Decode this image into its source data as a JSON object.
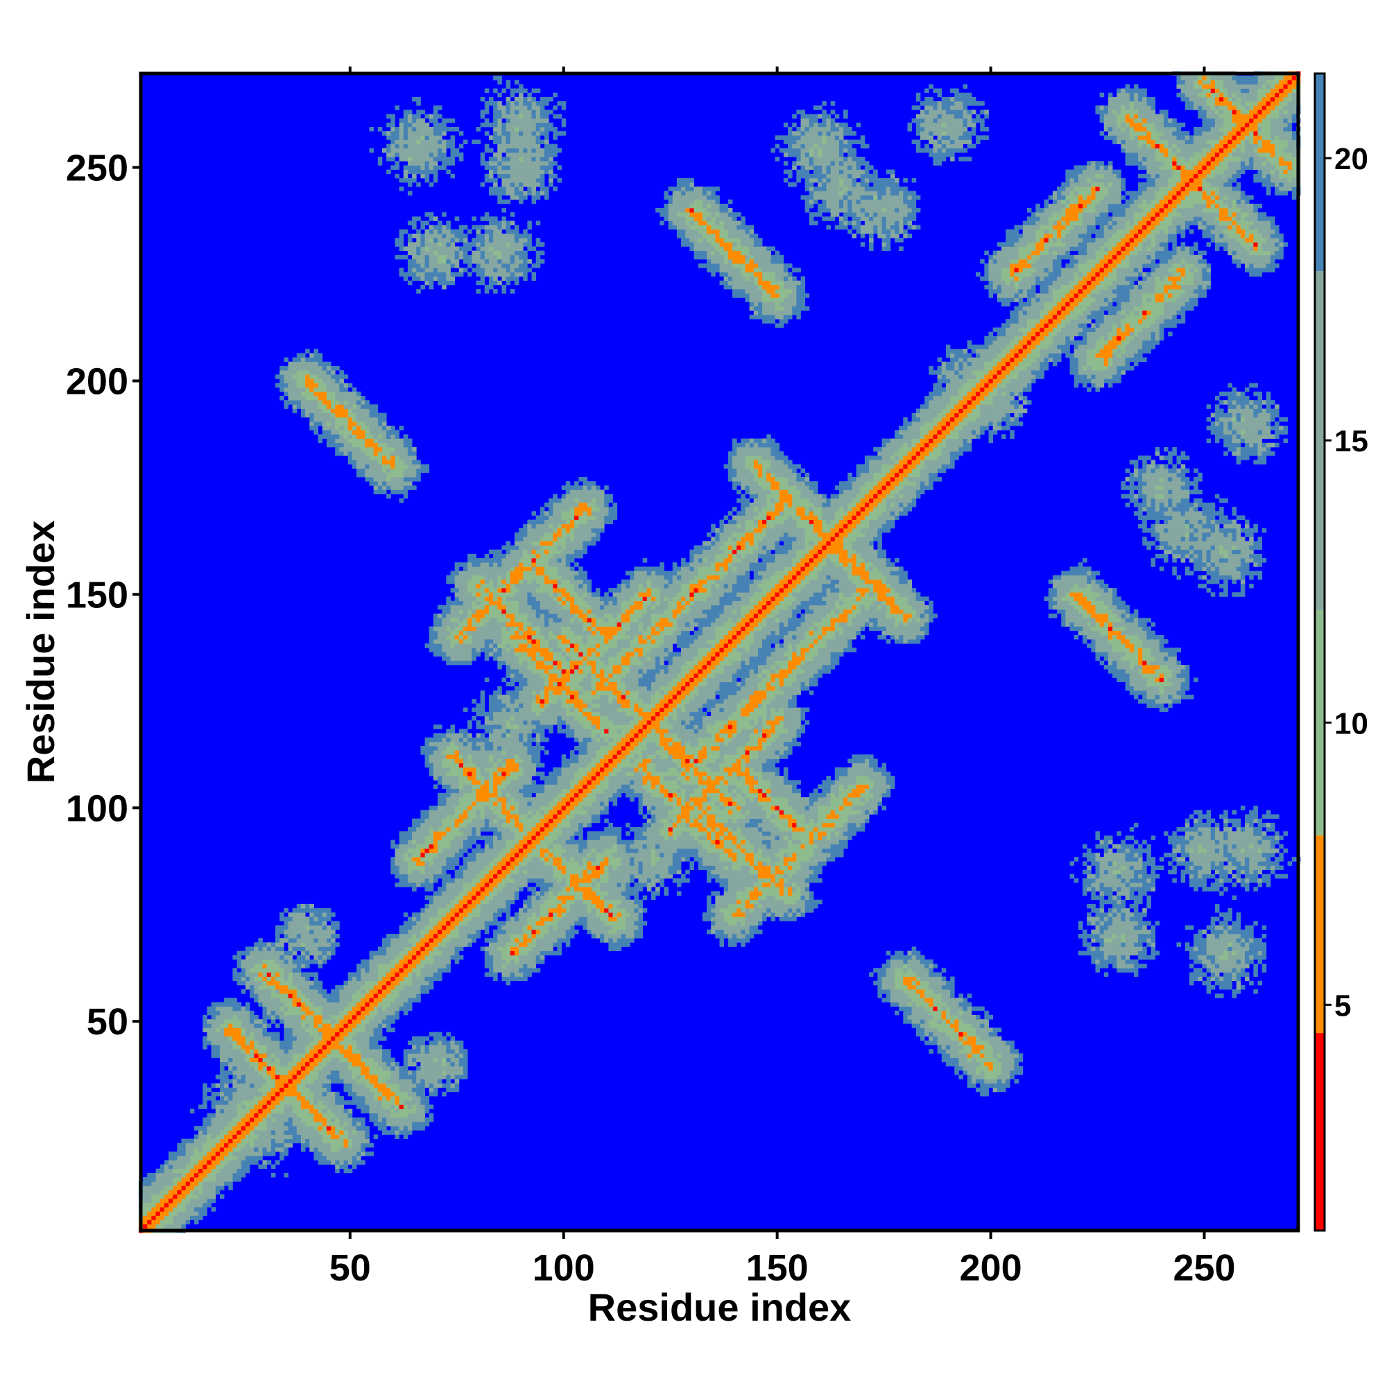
{
  "chart_data": {
    "type": "heatmap",
    "title": "",
    "xlabel": "Residue index",
    "ylabel": "Residue index",
    "xlim": [
      1,
      272
    ],
    "ylim": [
      1,
      272
    ],
    "x_ticks": [
      50,
      100,
      150,
      200,
      250
    ],
    "y_ticks": [
      50,
      100,
      150,
      200,
      250
    ],
    "x_tick_labels": [
      "50",
      "100",
      "150",
      "200",
      "250"
    ],
    "y_tick_labels": [
      "50",
      "100",
      "150",
      "200",
      "250"
    ],
    "colorbar": {
      "range": [
        1,
        21.5
      ],
      "ticks": [
        5,
        10,
        15,
        20
      ],
      "tick_labels": [
        "5",
        "10",
        "15",
        "20"
      ],
      "colors": [
        {
          "min": 0,
          "max": 4.5,
          "color": "#ff0000"
        },
        {
          "min": 4.5,
          "max": 8,
          "color": "#ff8c00"
        },
        {
          "min": 8,
          "max": 12,
          "color": "#8fbc8f"
        },
        {
          "min": 12,
          "max": 18,
          "color": "#87a8a0"
        },
        {
          "min": 18,
          "max": 21.5,
          "color": "#4682b4"
        },
        {
          "min": 21.5,
          "max": 100,
          "color": "#0000ff"
        }
      ]
    },
    "matrix_description": "pairwise residue distance map; contact structures listed as line segments [x1,y1,x2,y2] in residue index",
    "contact_segments": {
      "parallel": [
        [
          108,
          128,
          132,
          152
        ],
        [
          140,
          75,
          170,
          105
        ],
        [
          66,
          88,
          88,
          110
        ],
        [
          95,
          125,
          120,
          150
        ],
        [
          130,
          150,
          150,
          170
        ],
        [
          205,
          225,
          225,
          245
        ]
      ],
      "antiparallel": [
        [
          22,
          48,
          45,
          25
        ],
        [
          30,
          62,
          60,
          32
        ],
        [
          74,
          112,
          90,
          96
        ],
        [
          80,
          152,
          100,
          132
        ],
        [
          100,
          140,
          120,
          120
        ],
        [
          118,
          110,
          140,
          88
        ],
        [
          140,
          110,
          155,
          95
        ],
        [
          150,
          175,
          170,
          155
        ],
        [
          165,
          160,
          180,
          145
        ],
        [
          232,
          262,
          250,
          244
        ],
        [
          252,
          268,
          270,
          250
        ],
        [
          40,
          200,
          60,
          180
        ],
        [
          220,
          150,
          240,
          130
        ]
      ],
      "offdiag_blobs": [
        [
          66,
          255,
          12
        ],
        [
          70,
          230,
          10
        ],
        [
          165,
          245,
          14
        ],
        [
          190,
          260,
          10
        ],
        [
          260,
          90,
          14
        ],
        [
          230,
          85,
          12
        ],
        [
          255,
          160,
          14
        ],
        [
          240,
          175,
          10
        ],
        [
          45,
          45,
          18
        ],
        [
          30,
          25,
          15
        ],
        [
          150,
          85,
          15
        ],
        [
          110,
          85,
          14
        ],
        [
          85,
          150,
          14
        ],
        [
          88,
          120,
          12
        ],
        [
          130,
          100,
          14
        ],
        [
          90,
          250,
          10
        ],
        [
          195,
          200,
          10
        ],
        [
          70,
          40,
          8
        ]
      ]
    }
  }
}
